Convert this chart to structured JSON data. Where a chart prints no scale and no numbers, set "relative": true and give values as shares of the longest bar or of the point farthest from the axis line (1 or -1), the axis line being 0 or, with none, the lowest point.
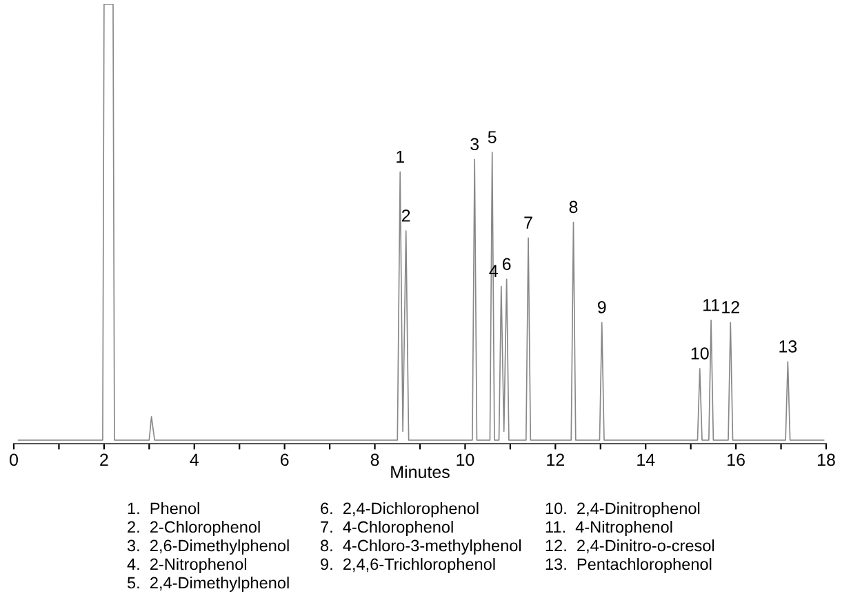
{
  "chart_data": {
    "type": "line",
    "relative": true,
    "xlabel": "Minutes",
    "color": "#888888",
    "x": [
      0.1,
      1.97,
      2.0,
      2.2,
      2.23,
      3.0,
      3.05,
      3.12,
      8.5,
      8.56,
      8.62,
      8.69,
      8.75,
      10.16,
      10.21,
      10.26,
      10.55,
      10.6,
      10.65,
      10.75,
      10.8,
      10.86,
      10.92,
      10.97,
      11.35,
      11.4,
      11.45,
      12.35,
      12.4,
      12.45,
      12.98,
      13.03,
      13.08,
      15.15,
      15.2,
      15.25,
      15.4,
      15.45,
      15.5,
      15.83,
      15.88,
      15.93,
      17.1,
      17.15,
      17.2,
      17.95
    ],
    "values": [
      0,
      0,
      1,
      1,
      0,
      0,
      0.054,
      0,
      0,
      0.615,
      0.02,
      0.48,
      0,
      0,
      0.644,
      0,
      0,
      0.66,
      0,
      0,
      0.353,
      0.02,
      0.369,
      0,
      0,
      0.464,
      0,
      0,
      0.5,
      0,
      0,
      0.27,
      0,
      0,
      0.164,
      0,
      0,
      0.275,
      0,
      0,
      0.27,
      0,
      0,
      0.18,
      0,
      0
    ],
    "xlim": [
      0,
      18
    ],
    "xticks": [
      0,
      {
        "value": 1,
        "label": null
      },
      2,
      {
        "value": 3,
        "label": null
      },
      4,
      {
        "value": 5,
        "label": null
      },
      6,
      {
        "value": 7,
        "label": null
      },
      8,
      {
        "value": 9,
        "label": null
      },
      10,
      {
        "value": 11,
        "label": null
      },
      12,
      {
        "value": 13,
        "label": null
      },
      14,
      {
        "value": 15,
        "label": null
      },
      16,
      {
        "value": 17,
        "label": null
      },
      18
    ],
    "grid": false,
    "legend": false,
    "marker": "none",
    "line_style": "solid",
    "annotations": [
      {
        "text": "1",
        "x": 8.56,
        "y": 0.615
      },
      {
        "text": "2",
        "x": 8.69,
        "y": 0.48
      },
      {
        "text": "3",
        "x": 10.21,
        "y": 0.644
      },
      {
        "text": "4",
        "x": 10.8,
        "y": 0.353
      },
      {
        "text": "5",
        "x": 10.6,
        "y": 0.66
      },
      {
        "text": "6",
        "x": 10.92,
        "y": 0.369
      },
      {
        "text": "7",
        "x": 11.4,
        "y": 0.464
      },
      {
        "text": "8",
        "x": 12.4,
        "y": 0.5
      },
      {
        "text": "9",
        "x": 13.03,
        "y": 0.27
      },
      {
        "text": "10",
        "x": 15.2,
        "y": 0.164
      },
      {
        "text": "11",
        "x": 15.45,
        "y": 0.275
      },
      {
        "text": "12",
        "x": 15.88,
        "y": 0.27
      },
      {
        "text": "13",
        "x": 17.15,
        "y": 0.18
      },
      "1.  Phenol",
      "2.  2-Chlorophenol",
      "3.  2,6-Dimethylphenol",
      "4.  2-Nitrophenol",
      "5.  2,4-Dimethylphenol",
      "6.  2,4-Dichlorophenol",
      "7.  4-Chlorophenol",
      "8.  4-Chloro-3-methylphenol",
      "9.  2,4,6-Trichlorophenol",
      "10.  2,4-Dinitrophenol",
      "11.  4-Nitrophenol",
      "12.  2,4-Dinitro-o-cresol",
      "13.  Pentachlorophenol"
    ]
  }
}
